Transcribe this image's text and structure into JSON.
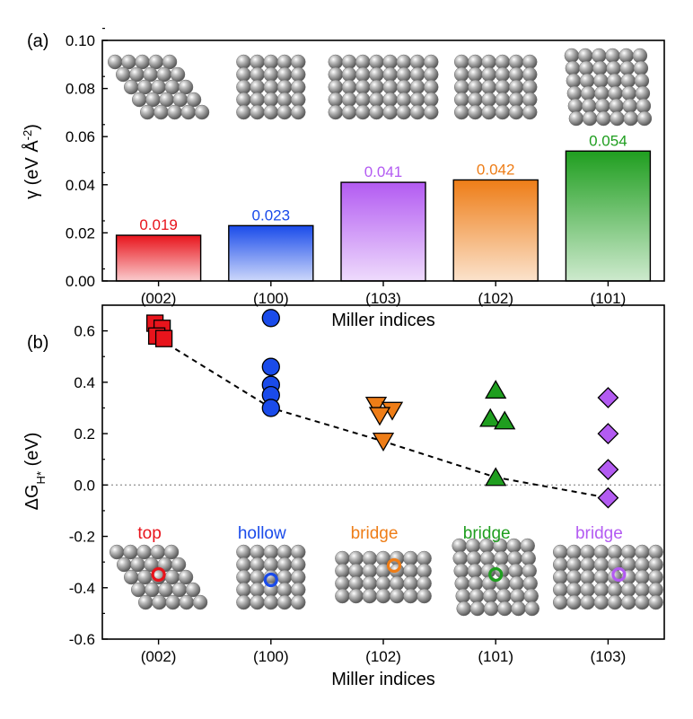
{
  "colors": {
    "002": "#e8141c",
    "100": "#1a4bea",
    "103": "#b35bf2",
    "102": "#ee7d17",
    "101": "#1f9e1f",
    "axis": "#000000",
    "atom": "#8c8c8c",
    "zero_line": "#9a9a9a"
  },
  "chart_data": [
    {
      "panel": "(a)",
      "type": "bar",
      "ylabel_main": "γ (eV Å",
      "ylabel_sup": "-2",
      "ylabel_end": ")",
      "xlabel": "Miller indices",
      "categories": [
        "(002)",
        "(100)",
        "(103)",
        "(102)",
        "(101)"
      ],
      "category_keys": [
        "002",
        "100",
        "103",
        "102",
        "101"
      ],
      "values": [
        0.019,
        0.023,
        0.041,
        0.042,
        0.054
      ],
      "value_labels": [
        "0.019",
        "0.023",
        "0.041",
        "0.042",
        "0.054"
      ],
      "ylim": [
        0,
        0.1
      ],
      "yticks": [
        "0.00",
        "0.02",
        "0.04",
        "0.06",
        "0.08",
        "0.10"
      ],
      "legend": "none",
      "grid": false,
      "insets": "atomic surface slab images above each bar"
    },
    {
      "panel": "(b)",
      "type": "scatter",
      "ylabel_main": "ΔG",
      "ylabel_sub": "H*",
      "ylabel_end": " (eV)",
      "xlabel": "Miller indices",
      "categories": [
        "(002)",
        "(100)",
        "(102)",
        "(101)",
        "(103)"
      ],
      "category_keys": [
        "002",
        "100",
        "102",
        "101",
        "103"
      ],
      "markers": [
        "square",
        "circle",
        "triangle-down",
        "triangle-up",
        "diamond"
      ],
      "series": [
        {
          "category": "(002)",
          "values": [
            0.63,
            0.61,
            0.58,
            0.57
          ]
        },
        {
          "category": "(100)",
          "values": [
            0.65,
            0.46,
            0.39,
            0.35,
            0.3
          ]
        },
        {
          "category": "(102)",
          "values": [
            0.31,
            0.29,
            0.27,
            0.17
          ]
        },
        {
          "category": "(101)",
          "values": [
            0.37,
            0.26,
            0.25,
            0.03
          ]
        },
        {
          "category": "(103)",
          "values": [
            0.34,
            0.2,
            0.06,
            -0.05
          ]
        }
      ],
      "trend_line": [
        0.57,
        0.3,
        0.17,
        0.03,
        -0.05
      ],
      "site_labels": [
        "top",
        "hollow",
        "bridge",
        "bridge",
        "bridge"
      ],
      "ylim": [
        -0.6,
        0.7
      ],
      "yticks": [
        "-0.6",
        "-0.4",
        "-0.2",
        "0.0",
        "0.2",
        "0.4",
        "0.6"
      ],
      "reference_line": 0.0,
      "legend": "none",
      "grid": false,
      "insets": "atomic surface slab images with highlighted adsorption site"
    }
  ],
  "panel_labels": [
    "(a)",
    "(b)"
  ]
}
